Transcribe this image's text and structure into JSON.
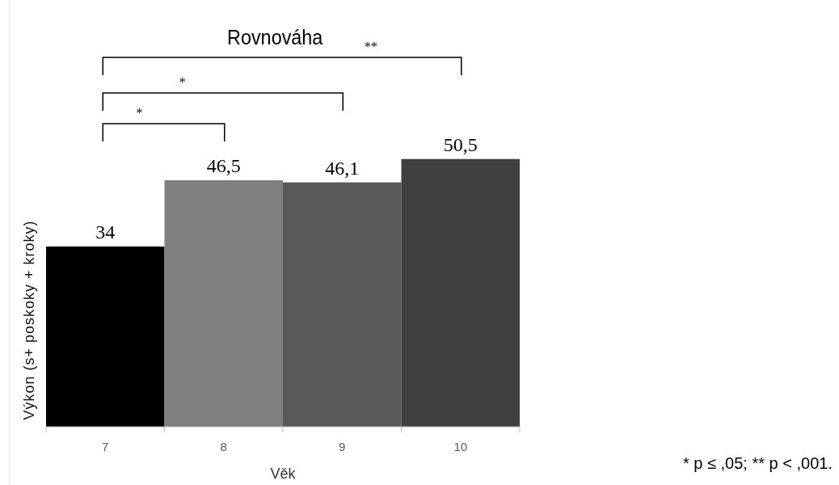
{
  "chart_data": {
    "type": "bar",
    "title": "Rovnováha",
    "xlabel": "Věk",
    "ylabel": "Výkon (s+ poskoky + kroky)",
    "categories": [
      "7",
      "8",
      "9",
      "10"
    ],
    "values": [
      34,
      46.5,
      46.1,
      50.5
    ],
    "colors": [
      "#000000",
      "#808080",
      "#595959",
      "#404040"
    ],
    "value_labels": [
      "34",
      "46,5",
      "46,1",
      "50,5"
    ],
    "ylim": [
      0,
      80
    ],
    "tick_labels": "x",
    "grid": false,
    "annotations": [
      "**",
      "*",
      "*",
      "* p ≤ ,05; ** p < ,001."
    ]
  }
}
